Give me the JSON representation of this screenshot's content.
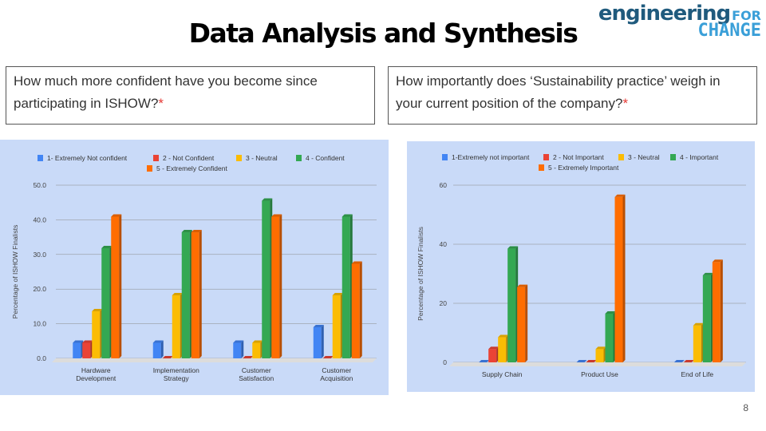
{
  "slide": {
    "title": "Data Analysis and Synthesis",
    "logo_line1": "engineering",
    "logo_for": "FOR",
    "logo_line2": "CHANGE",
    "page_number": "8"
  },
  "questions": [
    {
      "text": "How much more confident have you become since participating in ISHOW?",
      "mark": "*"
    },
    {
      "text": "How importantly does ‘Sustainability practice’ weigh in your current position of the company?",
      "mark": "*"
    }
  ],
  "colors": {
    "chart_bg": "#c9daf8",
    "blue": "#4285f4",
    "red": "#ea4335",
    "yellow": "#fbbc04",
    "green": "#34a853",
    "orange": "#ff6d01"
  },
  "chart_data": [
    {
      "type": "bar",
      "ylabel": "Percentage of ISHOW Finalists",
      "xlabel": "",
      "ylim": [
        0,
        50
      ],
      "yticks": [
        "0.0",
        "10.0",
        "20.0",
        "30.0",
        "40.0",
        "50.0"
      ],
      "grid": true,
      "legend_position": "top",
      "categories": [
        [
          "Hardware",
          "Development"
        ],
        [
          "Implementation",
          "Strategy"
        ],
        [
          "Customer",
          "Satisfaction"
        ],
        [
          "Customer",
          "Acquisition"
        ]
      ],
      "series": [
        {
          "name": "1- Extremely Not confident",
          "color": "#4285f4",
          "values": [
            4.5,
            4.5,
            4.5,
            9.0
          ]
        },
        {
          "name": "2 - Not Confident",
          "color": "#ea4335",
          "values": [
            4.5,
            0.0,
            0.0,
            0.0
          ]
        },
        {
          "name": "3 - Neutral",
          "color": "#fbbc04",
          "values": [
            13.6,
            18.2,
            4.5,
            18.2
          ]
        },
        {
          "name": "4 - Confident",
          "color": "#34a853",
          "values": [
            31.8,
            36.4,
            45.5,
            40.9
          ]
        },
        {
          "name": "5 - Extremely Confident",
          "color": "#ff6d01",
          "values": [
            40.9,
            36.4,
            40.9,
            27.3
          ]
        }
      ]
    },
    {
      "type": "bar",
      "ylabel": "Percentage of ISHOW Finalists",
      "xlabel": "",
      "ylim": [
        0,
        60
      ],
      "yticks": [
        "0",
        "20",
        "40",
        "60"
      ],
      "grid": true,
      "legend_position": "top",
      "categories": [
        [
          "Supply Chain"
        ],
        [
          "Product Use"
        ],
        [
          "End of Life"
        ]
      ],
      "series": [
        {
          "name": "1-Extremely not important",
          "color": "#4285f4",
          "values": [
            0,
            0,
            0
          ]
        },
        {
          "name": "2 - Not Important",
          "color": "#ea4335",
          "values": [
            4.5,
            0,
            0
          ]
        },
        {
          "name": "3 - Neutral",
          "color": "#fbbc04",
          "values": [
            8.5,
            4.5,
            12.5
          ]
        },
        {
          "name": "4 - Important",
          "color": "#34a853",
          "values": [
            38.5,
            16.5,
            29.5
          ]
        },
        {
          "name": "5 - Extremely Important",
          "color": "#ff6d01",
          "values": [
            25.5,
            56.0,
            34.0
          ]
        }
      ]
    }
  ]
}
